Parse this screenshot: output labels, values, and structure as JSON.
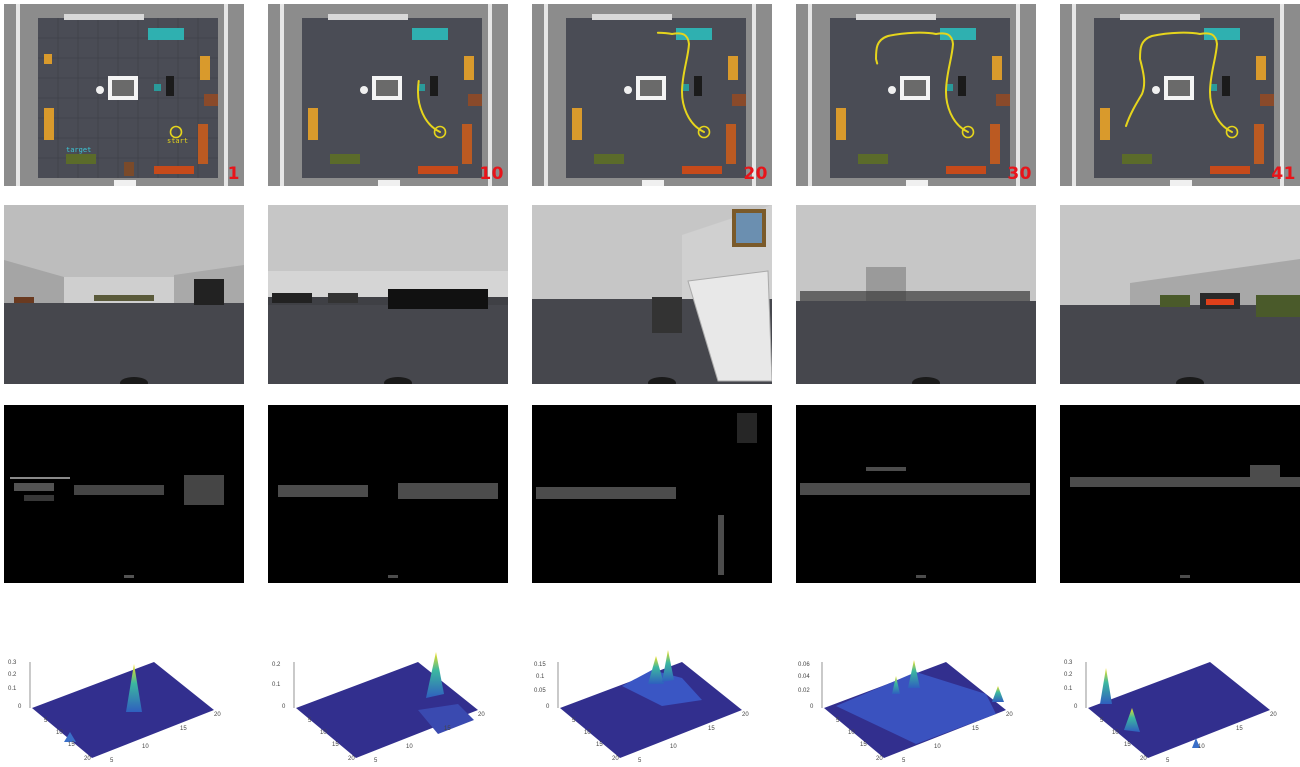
{
  "colors": {
    "trajectory": "#e6d51c",
    "step_label": "#e8141a",
    "target_label": "#3cc8d8",
    "start_label": "#e6d51c",
    "floor": "#4a4c55",
    "surface_low": "#2f2f8f",
    "surface_high": "#f5e11d"
  },
  "map_labels": {
    "target": "target",
    "start": "start"
  },
  "frames": [
    {
      "step": "1",
      "trajectory_progress": 0.0,
      "plot": {
        "z_ticks": [
          "0.3",
          "0.2",
          "0.1",
          "0"
        ],
        "x_ticks": [
          "5",
          "10",
          "15",
          "20"
        ],
        "y_ticks": [
          "5",
          "10",
          "15",
          "20"
        ]
      }
    },
    {
      "step": "10",
      "trajectory_progress": 0.22,
      "plot": {
        "z_ticks": [
          "0.2",
          "0.1",
          "0"
        ],
        "x_ticks": [
          "5",
          "10",
          "15",
          "20"
        ],
        "y_ticks": [
          "5",
          "10",
          "15",
          "20"
        ]
      }
    },
    {
      "step": "20",
      "trajectory_progress": 0.5,
      "plot": {
        "z_ticks": [
          "0.15",
          "0.1",
          "0.05",
          "0"
        ],
        "x_ticks": [
          "5",
          "10",
          "15",
          "20"
        ],
        "y_ticks": [
          "5",
          "10",
          "15",
          "20"
        ]
      }
    },
    {
      "step": "30",
      "trajectory_progress": 0.75,
      "plot": {
        "z_ticks": [
          "0.06",
          "0.04",
          "0.02",
          "0"
        ],
        "x_ticks": [
          "5",
          "10",
          "15",
          "20"
        ],
        "y_ticks": [
          "5",
          "10",
          "15",
          "20"
        ]
      }
    },
    {
      "step": "41",
      "trajectory_progress": 1.0,
      "plot": {
        "z_ticks": [
          "0.3",
          "0.2",
          "0.1",
          "0"
        ],
        "x_ticks": [
          "5",
          "10",
          "15",
          "20"
        ],
        "y_ticks": [
          "5",
          "10",
          "15",
          "20"
        ]
      }
    }
  ]
}
